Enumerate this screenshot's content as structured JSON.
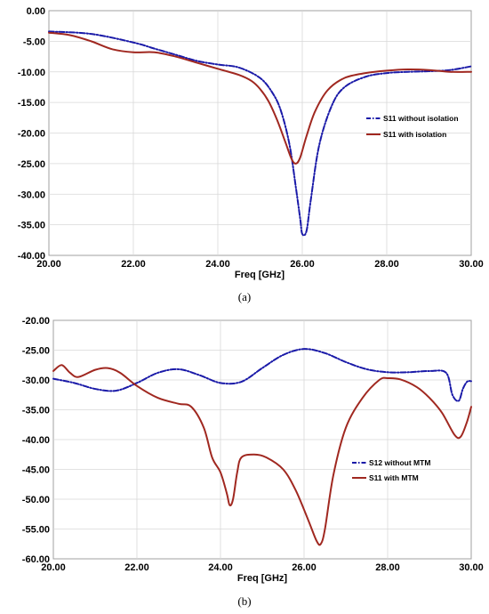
{
  "colors": {
    "blue": "#1a1aa8",
    "red": "#a02820"
  },
  "chart_data": [
    {
      "type": "line",
      "caption": "(a)",
      "xlabel": "Freq [GHz]",
      "ylabel": "",
      "xlim": [
        20,
        30
      ],
      "ylim": [
        -40,
        0
      ],
      "x_ticks": [
        "20.00",
        "22.00",
        "24.00",
        "26.00",
        "28.00",
        "30.00"
      ],
      "y_ticks": [
        "0.00",
        "-5.00",
        "-10.00",
        "-15.00",
        "-20.00",
        "-25.00",
        "-30.00",
        "-35.00",
        "-40.00"
      ],
      "legend_position": "right",
      "series": [
        {
          "name": "S11 without isolation",
          "color": "#1a1aa8",
          "style": "dashdot",
          "x": [
            20.0,
            21.0,
            22.0,
            22.5,
            23.0,
            23.5,
            24.0,
            24.5,
            25.0,
            25.3,
            25.5,
            25.7,
            25.85,
            25.95,
            26.0,
            26.1,
            26.2,
            26.4,
            26.7,
            27.0,
            27.5,
            28.0,
            28.5,
            29.0,
            29.5,
            30.0
          ],
          "y": [
            -3.4,
            -3.8,
            -5.2,
            -6.2,
            -7.2,
            -8.2,
            -8.8,
            -9.3,
            -11.0,
            -13.5,
            -16.5,
            -22.0,
            -29.0,
            -34.0,
            -36.5,
            -36.0,
            -31.0,
            -22.0,
            -15.5,
            -12.5,
            -10.8,
            -10.2,
            -10.0,
            -9.9,
            -9.7,
            -9.1
          ]
        },
        {
          "name": "S11 with isolation",
          "color": "#a02820",
          "style": "solid",
          "x": [
            20.0,
            20.5,
            21.0,
            21.5,
            22.0,
            22.5,
            23.0,
            23.5,
            24.0,
            24.5,
            24.8,
            25.0,
            25.2,
            25.4,
            25.6,
            25.75,
            25.85,
            25.95,
            26.1,
            26.3,
            26.6,
            27.0,
            27.5,
            28.0,
            28.5,
            29.0,
            29.5,
            30.0
          ],
          "y": [
            -3.6,
            -4.0,
            -5.0,
            -6.3,
            -6.8,
            -6.8,
            -7.5,
            -8.5,
            -9.5,
            -10.5,
            -11.5,
            -12.8,
            -14.8,
            -17.8,
            -21.5,
            -24.3,
            -25.0,
            -24.0,
            -20.5,
            -16.5,
            -13.0,
            -11.0,
            -10.2,
            -9.8,
            -9.6,
            -9.7,
            -10.0,
            -10.0
          ]
        }
      ]
    },
    {
      "type": "line",
      "caption": "(b)",
      "xlabel": "Freq [GHz]",
      "ylabel": "",
      "xlim": [
        20,
        30
      ],
      "ylim": [
        -60,
        -20
      ],
      "x_ticks": [
        "20.00",
        "22.00",
        "24.00",
        "26.00",
        "28.00",
        "30.00"
      ],
      "y_ticks": [
        "-20.00",
        "-25.00",
        "-30.00",
        "-35.00",
        "-40.00",
        "-45.00",
        "-50.00",
        "-55.00",
        "-60.00"
      ],
      "legend_position": "right",
      "series": [
        {
          "name": "S12 without MTM",
          "color": "#1a1aa8",
          "style": "dashdot",
          "x": [
            20.0,
            20.5,
            21.0,
            21.5,
            22.0,
            22.5,
            23.0,
            23.5,
            24.0,
            24.5,
            25.0,
            25.5,
            26.0,
            26.5,
            27.0,
            27.5,
            28.0,
            28.5,
            29.0,
            29.4,
            29.55,
            29.7,
            29.8,
            29.9,
            30.0
          ],
          "y": [
            -29.8,
            -30.5,
            -31.5,
            -31.8,
            -30.5,
            -28.8,
            -28.2,
            -29.2,
            -30.5,
            -30.3,
            -28.0,
            -25.8,
            -24.8,
            -25.5,
            -27.0,
            -28.2,
            -28.7,
            -28.7,
            -28.5,
            -28.8,
            -32.5,
            -33.5,
            -31.5,
            -30.3,
            -30.2
          ]
        },
        {
          "name": "S11 with MTM",
          "color": "#a02820",
          "style": "solid",
          "x": [
            20.0,
            20.2,
            20.4,
            20.6,
            21.0,
            21.3,
            21.6,
            22.0,
            22.5,
            23.0,
            23.3,
            23.6,
            23.8,
            24.0,
            24.15,
            24.22,
            24.3,
            24.4,
            24.5,
            24.8,
            25.1,
            25.5,
            25.8,
            26.1,
            26.3,
            26.4,
            26.5,
            26.7,
            27.0,
            27.4,
            27.8,
            28.0,
            28.3,
            28.7,
            29.0,
            29.3,
            29.6,
            29.75,
            29.9,
            30.0
          ],
          "y": [
            -28.5,
            -27.5,
            -28.8,
            -29.5,
            -28.3,
            -28.0,
            -28.8,
            -31.0,
            -33.0,
            -34.0,
            -34.5,
            -38.0,
            -43.0,
            -45.5,
            -49.0,
            -51.0,
            -50.0,
            -45.5,
            -43.0,
            -42.5,
            -43.0,
            -45.0,
            -48.5,
            -53.5,
            -57.0,
            -57.5,
            -55.0,
            -46.0,
            -38.0,
            -33.0,
            -30.0,
            -29.7,
            -29.9,
            -31.2,
            -33.0,
            -35.5,
            -39.2,
            -39.5,
            -37.0,
            -34.5
          ]
        }
      ]
    }
  ]
}
